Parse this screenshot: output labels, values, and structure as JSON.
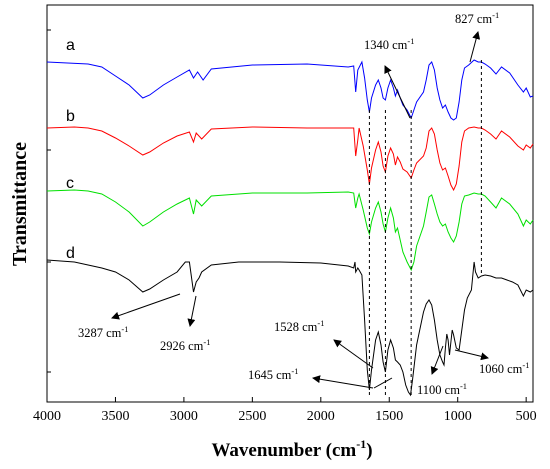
{
  "chart_data": {
    "type": "line",
    "xlabel": "Wavenumber (cm",
    "xlabel_sup": "-1",
    "xlabel_close": ")",
    "ylabel": "Transmittance",
    "xlim": [
      4000,
      450
    ],
    "x_reversed": true,
    "xticks": [
      4000,
      3500,
      3000,
      2500,
      2000,
      1500,
      1000,
      500
    ],
    "series": [
      {
        "name": "a",
        "color": "#0000ff",
        "points": [
          [
            4000,
            62
          ],
          [
            3850,
            63
          ],
          [
            3700,
            64
          ],
          [
            3600,
            67
          ],
          [
            3500,
            76
          ],
          [
            3400,
            85
          ],
          [
            3300,
            98
          ],
          [
            3250,
            95
          ],
          [
            3150,
            85
          ],
          [
            3050,
            77
          ],
          [
            2960,
            70
          ],
          [
            2930,
            78
          ],
          [
            2900,
            72
          ],
          [
            2860,
            80
          ],
          [
            2800,
            69
          ],
          [
            2500,
            65
          ],
          [
            2100,
            64
          ],
          [
            1800,
            67
          ],
          [
            1760,
            66
          ],
          [
            1745,
            92
          ],
          [
            1730,
            70
          ],
          [
            1700,
            62
          ],
          [
            1680,
            78
          ],
          [
            1660,
            100
          ],
          [
            1645,
            112
          ],
          [
            1630,
            98
          ],
          [
            1600,
            85
          ],
          [
            1580,
            80
          ],
          [
            1560,
            88
          ],
          [
            1545,
            98
          ],
          [
            1528,
            100
          ],
          [
            1510,
            88
          ],
          [
            1490,
            80
          ],
          [
            1470,
            88
          ],
          [
            1455,
            96
          ],
          [
            1440,
            90
          ],
          [
            1420,
            98
          ],
          [
            1400,
            105
          ],
          [
            1370,
            110
          ],
          [
            1340,
            118
          ],
          [
            1320,
            110
          ],
          [
            1300,
            102
          ],
          [
            1250,
            92
          ],
          [
            1230,
            80
          ],
          [
            1210,
            65
          ],
          [
            1190,
            62
          ],
          [
            1170,
            70
          ],
          [
            1150,
            88
          ],
          [
            1130,
            100
          ],
          [
            1110,
            108
          ],
          [
            1090,
            105
          ],
          [
            1070,
            112
          ],
          [
            1050,
            118
          ],
          [
            1030,
            120
          ],
          [
            1010,
            118
          ],
          [
            990,
            102
          ],
          [
            970,
            80
          ],
          [
            950,
            68
          ],
          [
            920,
            65
          ],
          [
            880,
            60
          ],
          [
            850,
            62
          ],
          [
            827,
            62
          ],
          [
            800,
            64
          ],
          [
            760,
            68
          ],
          [
            720,
            74
          ],
          [
            680,
            67
          ],
          [
            620,
            73
          ],
          [
            560,
            85
          ],
          [
            520,
            92
          ],
          [
            500,
            88
          ],
          [
            470,
            97
          ],
          [
            450,
            96
          ]
        ]
      },
      {
        "name": "b",
        "color": "#ff0000",
        "points": [
          [
            4000,
            128
          ],
          [
            3800,
            127
          ],
          [
            3700,
            128
          ],
          [
            3600,
            131
          ],
          [
            3500,
            138
          ],
          [
            3400,
            146
          ],
          [
            3300,
            155
          ],
          [
            3250,
            152
          ],
          [
            3150,
            143
          ],
          [
            3050,
            136
          ],
          [
            2960,
            132
          ],
          [
            2930,
            142
          ],
          [
            2910,
            133
          ],
          [
            2870,
            139
          ],
          [
            2800,
            129
          ],
          [
            2500,
            127
          ],
          [
            2100,
            128
          ],
          [
            1800,
            128
          ],
          [
            1760,
            128
          ],
          [
            1745,
            156
          ],
          [
            1730,
            140
          ],
          [
            1720,
            128
          ],
          [
            1690,
            146
          ],
          [
            1660,
            170
          ],
          [
            1645,
            184
          ],
          [
            1630,
            168
          ],
          [
            1600,
            150
          ],
          [
            1580,
            142
          ],
          [
            1560,
            152
          ],
          [
            1545,
            166
          ],
          [
            1528,
            172
          ],
          [
            1510,
            156
          ],
          [
            1490,
            148
          ],
          [
            1470,
            154
          ],
          [
            1455,
            165
          ],
          [
            1440,
            157
          ],
          [
            1420,
            162
          ],
          [
            1400,
            169
          ],
          [
            1370,
            172
          ],
          [
            1340,
            178
          ],
          [
            1320,
            170
          ],
          [
            1300,
            163
          ],
          [
            1250,
            156
          ],
          [
            1230,
            148
          ],
          [
            1210,
            131
          ],
          [
            1190,
            128
          ],
          [
            1170,
            134
          ],
          [
            1150,
            150
          ],
          [
            1130,
            163
          ],
          [
            1110,
            170
          ],
          [
            1090,
            168
          ],
          [
            1070,
            176
          ],
          [
            1050,
            185
          ],
          [
            1030,
            190
          ],
          [
            1010,
            184
          ],
          [
            990,
            166
          ],
          [
            970,
            142
          ],
          [
            950,
            131
          ],
          [
            920,
            128
          ],
          [
            880,
            127
          ],
          [
            850,
            128
          ],
          [
            827,
            128
          ],
          [
            800,
            130
          ],
          [
            760,
            134
          ],
          [
            720,
            139
          ],
          [
            680,
            131
          ],
          [
            620,
            137
          ],
          [
            560,
            146
          ],
          [
            520,
            150
          ],
          [
            500,
            145
          ],
          [
            470,
            148
          ],
          [
            450,
            144
          ]
        ]
      },
      {
        "name": "c",
        "color": "#00e000",
        "points": [
          [
            4000,
            191
          ],
          [
            3800,
            190
          ],
          [
            3700,
            191
          ],
          [
            3600,
            194
          ],
          [
            3500,
            202
          ],
          [
            3400,
            212
          ],
          [
            3300,
            226
          ],
          [
            3250,
            222
          ],
          [
            3150,
            212
          ],
          [
            3050,
            204
          ],
          [
            2960,
            198
          ],
          [
            2930,
            214
          ],
          [
            2910,
            200
          ],
          [
            2870,
            206
          ],
          [
            2800,
            196
          ],
          [
            2500,
            193
          ],
          [
            2100,
            193
          ],
          [
            1800,
            192
          ],
          [
            1760,
            193
          ],
          [
            1745,
            208
          ],
          [
            1730,
            198
          ],
          [
            1720,
            194
          ],
          [
            1690,
            210
          ],
          [
            1660,
            228
          ],
          [
            1645,
            234
          ],
          [
            1630,
            222
          ],
          [
            1600,
            208
          ],
          [
            1580,
            202
          ],
          [
            1560,
            212
          ],
          [
            1545,
            224
          ],
          [
            1528,
            232
          ],
          [
            1510,
            218
          ],
          [
            1490,
            208
          ],
          [
            1470,
            218
          ],
          [
            1455,
            232
          ],
          [
            1440,
            228
          ],
          [
            1420,
            240
          ],
          [
            1400,
            252
          ],
          [
            1370,
            262
          ],
          [
            1340,
            270
          ],
          [
            1320,
            262
          ],
          [
            1300,
            246
          ],
          [
            1250,
            226
          ],
          [
            1230,
            212
          ],
          [
            1210,
            197
          ],
          [
            1190,
            195
          ],
          [
            1170,
            204
          ],
          [
            1150,
            214
          ],
          [
            1130,
            222
          ],
          [
            1110,
            226
          ],
          [
            1090,
            224
          ],
          [
            1070,
            232
          ],
          [
            1050,
            238
          ],
          [
            1030,
            242
          ],
          [
            1010,
            236
          ],
          [
            990,
            222
          ],
          [
            970,
            204
          ],
          [
            950,
            196
          ],
          [
            920,
            195
          ],
          [
            880,
            193
          ],
          [
            850,
            194
          ],
          [
            827,
            194
          ],
          [
            800,
            196
          ],
          [
            760,
            202
          ],
          [
            720,
            208
          ],
          [
            680,
            198
          ],
          [
            620,
            204
          ],
          [
            560,
            214
          ],
          [
            520,
            226
          ],
          [
            500,
            220
          ],
          [
            470,
            224
          ],
          [
            450,
            220
          ]
        ]
      },
      {
        "name": "d",
        "color": "#000000",
        "points": [
          [
            4000,
            260
          ],
          [
            3900,
            261
          ],
          [
            3800,
            262
          ],
          [
            3700,
            265
          ],
          [
            3600,
            268
          ],
          [
            3500,
            272
          ],
          [
            3400,
            280
          ],
          [
            3300,
            292
          ],
          [
            3250,
            289
          ],
          [
            3150,
            280
          ],
          [
            3050,
            272
          ],
          [
            2990,
            262
          ],
          [
            2960,
            262
          ],
          [
            2930,
            292
          ],
          [
            2910,
            282
          ],
          [
            2890,
            278
          ],
          [
            2870,
            272
          ],
          [
            2800,
            265
          ],
          [
            2600,
            262
          ],
          [
            2300,
            262
          ],
          [
            2000,
            263
          ],
          [
            1800,
            266
          ],
          [
            1760,
            268
          ],
          [
            1750,
            262
          ],
          [
            1745,
            272
          ],
          [
            1730,
            268
          ],
          [
            1720,
            270
          ],
          [
            1700,
            275
          ],
          [
            1680,
            320
          ],
          [
            1660,
            370
          ],
          [
            1645,
            390
          ],
          [
            1630,
            370
          ],
          [
            1600,
            340
          ],
          [
            1580,
            332
          ],
          [
            1560,
            345
          ],
          [
            1545,
            362
          ],
          [
            1528,
            372
          ],
          [
            1510,
            350
          ],
          [
            1490,
            340
          ],
          [
            1470,
            348
          ],
          [
            1455,
            360
          ],
          [
            1440,
            362
          ],
          [
            1420,
            365
          ],
          [
            1400,
            372
          ],
          [
            1380,
            385
          ],
          [
            1360,
            392
          ],
          [
            1345,
            395
          ],
          [
            1330,
            380
          ],
          [
            1300,
            345
          ],
          [
            1250,
            312
          ],
          [
            1230,
            304
          ],
          [
            1210,
            300
          ],
          [
            1190,
            305
          ],
          [
            1170,
            320
          ],
          [
            1150,
            340
          ],
          [
            1130,
            355
          ],
          [
            1110,
            362
          ],
          [
            1100,
            365
          ],
          [
            1090,
            348
          ],
          [
            1080,
            334
          ],
          [
            1070,
            340
          ],
          [
            1060,
            355
          ],
          [
            1050,
            342
          ],
          [
            1040,
            330
          ],
          [
            1030,
            335
          ],
          [
            1010,
            348
          ],
          [
            990,
            350
          ],
          [
            970,
            330
          ],
          [
            950,
            310
          ],
          [
            930,
            298
          ],
          [
            900,
            290
          ],
          [
            880,
            262
          ],
          [
            870,
            272
          ],
          [
            850,
            278
          ],
          [
            827,
            276
          ],
          [
            800,
            275
          ],
          [
            760,
            276
          ],
          [
            720,
            278
          ],
          [
            680,
            278
          ],
          [
            640,
            280
          ],
          [
            600,
            282
          ],
          [
            560,
            285
          ],
          [
            520,
            296
          ],
          [
            500,
            290
          ],
          [
            470,
            292
          ],
          [
            450,
            290
          ]
        ]
      }
    ],
    "annotations": [
      {
        "text": "3287 cm",
        "sup": "-1"
      },
      {
        "text": "2926 cm",
        "sup": "-1"
      },
      {
        "text": "1528 cm",
        "sup": "-1"
      },
      {
        "text": "1645 cm",
        "sup": "-1"
      },
      {
        "text": "1340 cm",
        "sup": "-1"
      },
      {
        "text": "827 cm",
        "sup": "-1"
      },
      {
        "text": "1100 cm",
        "sup": "-1"
      },
      {
        "text": "1060 cm",
        "sup": "-1"
      }
    ],
    "dashed_markers": [
      1645,
      1528,
      1340,
      827
    ]
  }
}
